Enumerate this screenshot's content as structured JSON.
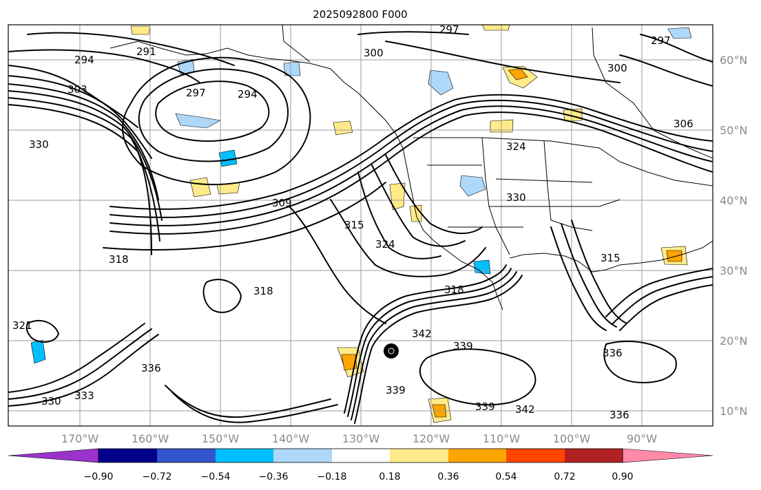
{
  "title": "2025092800 F000",
  "longitude_labels": [
    "170°W",
    "160°W",
    "150°W",
    "140°W",
    "130°W",
    "120°W",
    "110°W",
    "100°W",
    "90°W"
  ],
  "latitude_labels": [
    "60°N",
    "50°N",
    "40°N",
    "30°N",
    "20°N",
    "10°N"
  ],
  "colorbar": {
    "colors": [
      "#9a33cc",
      "#00008b",
      "#3355cc",
      "#00bfff",
      "#add8fa",
      "#ffffff",
      "#ffeb8a",
      "#ffa500",
      "#ff4500",
      "#b22222",
      "#ff8aaa"
    ],
    "tick_labels": [
      "−0.90",
      "−0.72",
      "−0.54",
      "−0.36",
      "−0.18",
      "0.18",
      "0.36",
      "0.54",
      "0.72",
      "0.90"
    ]
  },
  "contour_labels": [
    "297",
    "291",
    "294",
    "300",
    "297",
    "300",
    "306",
    "303",
    "297",
    "294",
    "330",
    "309",
    "315",
    "324",
    "324",
    "330",
    "318",
    "315",
    "318",
    "321",
    "318",
    "342",
    "339",
    "336",
    "333",
    "330",
    "336",
    "339",
    "342",
    "339",
    "336"
  ],
  "icons": [
    "hurricane-marker-icon"
  ]
}
